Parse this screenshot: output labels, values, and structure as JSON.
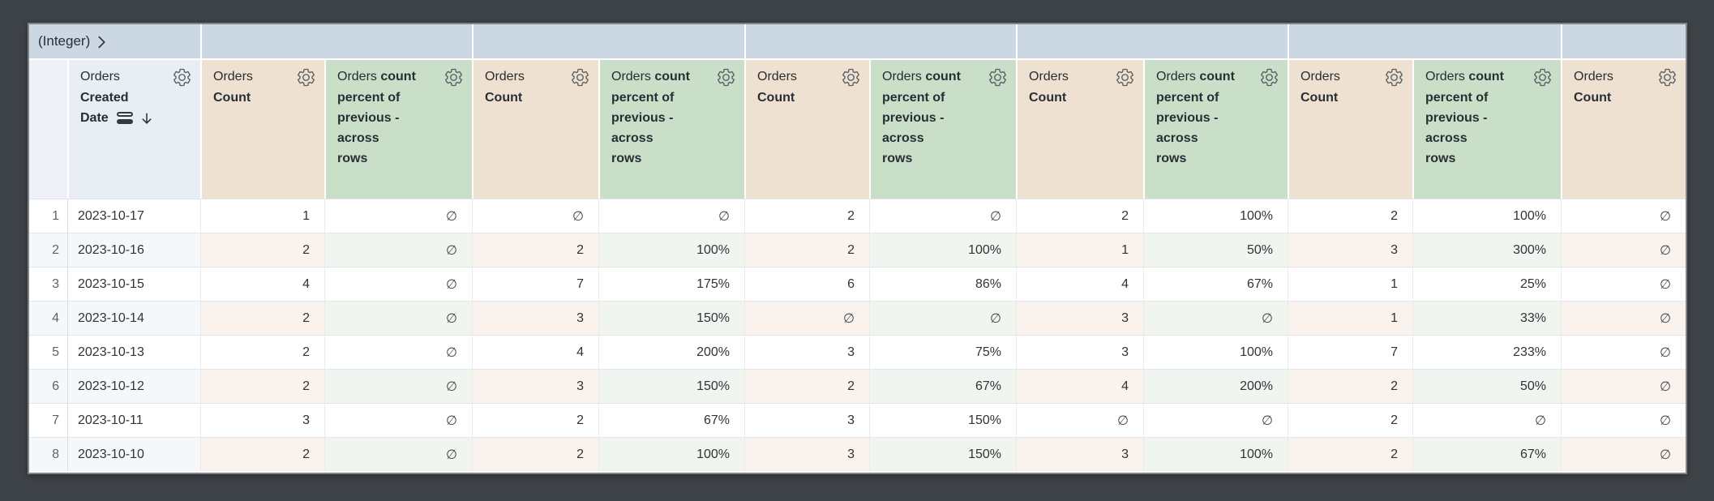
{
  "colors": {
    "canvas_bg": "#3e4347",
    "pivot_header_bg": "#ccd7e4",
    "rownum_header_bg": "#eef2f8",
    "date_header_bg": "#e9eef5",
    "count_header_bg": "#efe1d2",
    "percent_header_bg": "#c9dfc8",
    "row_alt_blue": "#f5f8fb",
    "row_alt_tan": "#faf2ec",
    "row_alt_green": "#f0f6ef",
    "text_dark": "#272e34",
    "icon_gray": "#565c63"
  },
  "pivot": {
    "label": "(Integer)",
    "chevron_icon": "chevron-right-icon",
    "value_cells": [
      "",
      "",
      "",
      "",
      "",
      ""
    ]
  },
  "headers": {
    "gear_icon": "gear-icon",
    "date": {
      "view": "Orders",
      "field_first": "",
      "lines": [
        "Created",
        "Date"
      ],
      "icons": [
        "rows-icon",
        "sort-desc-arrow-icon"
      ],
      "sort": "desc"
    },
    "count": {
      "view": "Orders",
      "field_first": "",
      "lines": [
        "Count"
      ],
      "icons": []
    },
    "percent": {
      "view": "Orders",
      "field_first": "count",
      "lines": [
        "percent of",
        "previous -",
        "across",
        "rows"
      ],
      "icons": []
    }
  },
  "column_types": [
    "rownum",
    "date",
    "count",
    "percent",
    "count",
    "percent",
    "count",
    "percent",
    "count",
    "percent",
    "count",
    "percent",
    "count"
  ],
  "null_symbol": "∅",
  "rows": [
    [
      "1",
      "2023-10-17",
      "1",
      "∅",
      "∅",
      "∅",
      "2",
      "∅",
      "2",
      "100%",
      "2",
      "100%",
      "∅"
    ],
    [
      "2",
      "2023-10-16",
      "2",
      "∅",
      "2",
      "100%",
      "2",
      "100%",
      "1",
      "50%",
      "3",
      "300%",
      "∅"
    ],
    [
      "3",
      "2023-10-15",
      "4",
      "∅",
      "7",
      "175%",
      "6",
      "86%",
      "4",
      "67%",
      "1",
      "25%",
      "∅"
    ],
    [
      "4",
      "2023-10-14",
      "2",
      "∅",
      "3",
      "150%",
      "∅",
      "∅",
      "3",
      "∅",
      "1",
      "33%",
      "∅"
    ],
    [
      "5",
      "2023-10-13",
      "2",
      "∅",
      "4",
      "200%",
      "3",
      "75%",
      "3",
      "100%",
      "7",
      "233%",
      "∅"
    ],
    [
      "6",
      "2023-10-12",
      "2",
      "∅",
      "3",
      "150%",
      "2",
      "67%",
      "4",
      "200%",
      "2",
      "50%",
      "∅"
    ],
    [
      "7",
      "2023-10-11",
      "3",
      "∅",
      "2",
      "67%",
      "3",
      "150%",
      "∅",
      "∅",
      "2",
      "∅",
      "∅"
    ],
    [
      "8",
      "2023-10-10",
      "2",
      "∅",
      "2",
      "100%",
      "3",
      "150%",
      "3",
      "100%",
      "2",
      "67%",
      "∅"
    ]
  ]
}
